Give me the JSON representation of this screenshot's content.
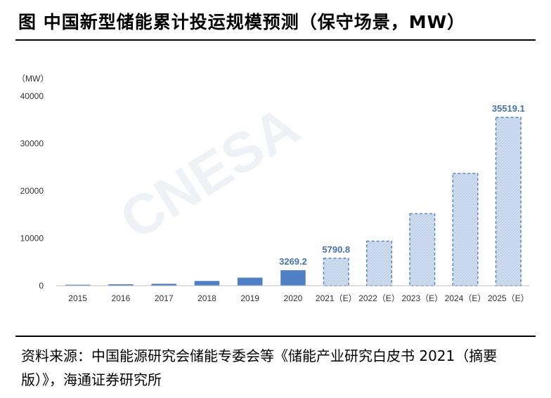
{
  "header": {
    "title": "图  中国新型储能累计投运规模预测（保守场景，MW）"
  },
  "chart_data": {
    "type": "bar",
    "unit_label": "（MW）",
    "categories": [
      "2015",
      "2016",
      "2017",
      "2018",
      "2019",
      "2020",
      "2021（E）",
      "2022（E）",
      "2023（E）",
      "2024（E）",
      "2025（E）"
    ],
    "values": [
      200,
      300,
      400,
      1000,
      1700,
      3269.2,
      5790.8,
      9400,
      15200,
      23700,
      35519.1
    ],
    "estimated": [
      false,
      false,
      false,
      false,
      false,
      false,
      true,
      true,
      true,
      true,
      true
    ],
    "data_labels": [
      "",
      "",
      "",
      "",
      "",
      "3269.2",
      "5790.8",
      "",
      "",
      "",
      "35519.1"
    ],
    "yticks": [
      0,
      10000,
      20000,
      30000,
      40000
    ],
    "ylim": [
      0,
      40000
    ],
    "colors": {
      "actual": "#4f7fc4",
      "estimated_fill": "#c9d9ee",
      "estimated_stroke": "#4f7fc4",
      "label": "#4472b0"
    },
    "watermark": "CNESA"
  },
  "footer": {
    "source": "资料来源：中国能源研究会储能专委会等《储能产业研究白皮书 2021（摘要版）》，海通证券研究所"
  }
}
